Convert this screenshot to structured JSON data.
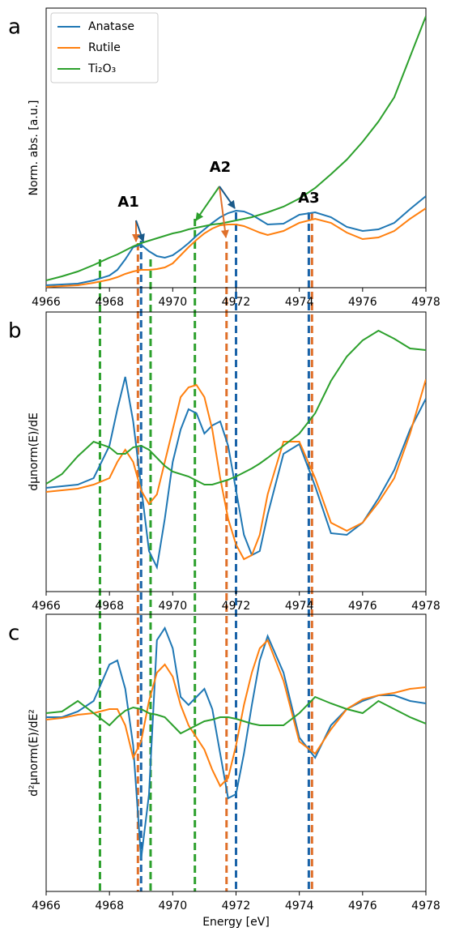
{
  "chart_data": [
    {
      "type": "line",
      "panel_label": "a",
      "ylabel": "Norm. abs. [a.u.]",
      "x": [
        4966,
        4966.5,
        4967,
        4967.5,
        4968,
        4968.25,
        4968.5,
        4968.75,
        4969,
        4969.25,
        4969.5,
        4969.75,
        4970,
        4970.25,
        4970.5,
        4970.75,
        4971,
        4971.25,
        4971.5,
        4971.75,
        4972,
        4972.25,
        4972.5,
        4972.75,
        4973,
        4973.5,
        4974,
        4974.5,
        4975,
        4975.5,
        4976,
        4976.5,
        4977,
        4977.5,
        4978
      ],
      "series": [
        {
          "name": "Anatase",
          "color": "#1f77b4",
          "values": [
            3,
            4,
            5,
            9,
            15,
            22,
            35,
            50,
            53,
            45,
            39,
            37,
            40,
            47,
            55,
            64,
            72,
            80,
            87,
            92,
            95,
            94,
            90,
            84,
            78,
            79,
            90,
            93,
            87,
            75,
            70,
            72,
            80,
            97,
            113
          ]
        },
        {
          "name": "Rutile",
          "color": "#ff7f0e",
          "values": [
            1,
            2,
            3,
            6,
            10,
            13,
            17,
            20,
            22,
            22,
            23,
            25,
            30,
            40,
            50,
            59,
            67,
            73,
            77,
            78,
            78,
            76,
            72,
            68,
            65,
            70,
            80,
            85,
            80,
            68,
            60,
            62,
            70,
            85,
            98
          ]
        },
        {
          "name": "Ti₂O₃",
          "color": "#2ca02c",
          "values": [
            9,
            14,
            20,
            28,
            37,
            41,
            46,
            51,
            55,
            58,
            61,
            64,
            67,
            69,
            72,
            74,
            76,
            78,
            79,
            81,
            83,
            85,
            87,
            90,
            93,
            100,
            110,
            123,
            140,
            158,
            180,
            205,
            235,
            285,
            335
          ]
        }
      ],
      "annotations": [
        {
          "text": "A1",
          "x": 4968.6,
          "y": 105
        },
        {
          "text": "A2",
          "x": 4971.5,
          "y": 148
        },
        {
          "text": "A3",
          "x": 4974.3,
          "y": 110
        }
      ],
      "vlines": [
        {
          "x": 4967.7,
          "y": 35,
          "color": "#2ca02c"
        },
        {
          "x": 4969.3,
          "y": 35,
          "color": "#2ca02c"
        },
        {
          "x": 4970.7,
          "y": 85,
          "color": "#2ca02c"
        },
        {
          "x": 4968.9,
          "y": 55,
          "color": "#e0702a"
        },
        {
          "x": 4971.7,
          "y": 57,
          "color": "#e0702a"
        },
        {
          "x": 4974.4,
          "y": 93,
          "color": "#e0702a"
        },
        {
          "x": 4969.0,
          "y": 58,
          "color": "#1a63a8"
        },
        {
          "x": 4972.0,
          "y": 93,
          "color": "#1a63a8"
        },
        {
          "x": 4974.3,
          "y": 93,
          "color": "#1a63a8"
        }
      ],
      "legend": "upper left",
      "xlim": [
        4966,
        4978
      ],
      "xticks": [
        4966,
        4968,
        4970,
        4972,
        4974,
        4976,
        4978
      ],
      "ylim": [
        0,
        345
      ]
    },
    {
      "type": "line",
      "panel_label": "b",
      "ylabel": "dμnorm(E)/dE",
      "x": [
        4966,
        4966.5,
        4967,
        4967.5,
        4968,
        4968.25,
        4968.5,
        4968.75,
        4969,
        4969.25,
        4969.5,
        4969.75,
        4970,
        4970.25,
        4970.5,
        4970.75,
        4971,
        4971.25,
        4971.5,
        4971.75,
        4972,
        4972.25,
        4972.5,
        4972.75,
        4973,
        4973.5,
        4974,
        4974.5,
        4975,
        4975.5,
        4976,
        4976.5,
        4977,
        4977.5,
        4978
      ],
      "series": [
        {
          "name": "Anatase",
          "color": "#1f77b4",
          "values": [
            128,
            130,
            132,
            140,
            180,
            225,
            265,
            210,
            130,
            50,
            30,
            90,
            160,
            200,
            225,
            220,
            195,
            205,
            210,
            180,
            125,
            70,
            45,
            50,
            95,
            170,
            182,
            130,
            72,
            70,
            85,
            115,
            150,
            200,
            238
          ]
        },
        {
          "name": "Rutile",
          "color": "#ff7f0e",
          "values": [
            123,
            125,
            127,
            132,
            140,
            160,
            175,
            160,
            125,
            108,
            120,
            160,
            200,
            240,
            252,
            255,
            240,
            200,
            140,
            90,
            58,
            40,
            45,
            70,
            120,
            185,
            185,
            140,
            85,
            75,
            85,
            110,
            140,
            195,
            262
          ]
        },
        {
          "name": "Ti₂O₃",
          "color": "#2ca02c",
          "values": [
            133,
            145,
            167,
            185,
            178,
            170,
            170,
            178,
            180,
            175,
            165,
            155,
            148,
            145,
            142,
            137,
            132,
            132,
            135,
            138,
            142,
            147,
            152,
            158,
            165,
            180,
            195,
            220,
            260,
            290,
            310,
            322,
            312,
            300,
            298
          ]
        }
      ],
      "xlim": [
        4966,
        4978
      ],
      "xticks": [
        4966,
        4968,
        4970,
        4972,
        4974,
        4976,
        4978
      ],
      "ylim": [
        0,
        345
      ]
    },
    {
      "type": "line",
      "panel_label": "c",
      "ylabel": "d²μnorm(E)/dE²",
      "xlabel": "Energy [eV]",
      "x": [
        4966,
        4966.5,
        4967,
        4967.5,
        4968,
        4968.25,
        4968.5,
        4968.75,
        4969,
        4969.25,
        4969.5,
        4969.75,
        4970,
        4970.25,
        4970.5,
        4970.75,
        4971,
        4971.25,
        4971.5,
        4971.75,
        4972,
        4972.25,
        4972.5,
        4972.75,
        4973,
        4973.5,
        4974,
        4974.5,
        4975,
        4975.5,
        4976,
        4976.5,
        4977,
        4977.5,
        4978
      ],
      "series": [
        {
          "name": "Anatase",
          "color": "#1f77b4",
          "values": [
            215,
            215,
            222,
            235,
            280,
            285,
            250,
            180,
            40,
            120,
            310,
            325,
            300,
            240,
            230,
            240,
            250,
            225,
            170,
            115,
            120,
            170,
            230,
            285,
            315,
            270,
            190,
            165,
            205,
            225,
            235,
            242,
            242,
            235,
            232
          ]
        },
        {
          "name": "Rutile",
          "color": "#ff7f0e",
          "values": [
            212,
            214,
            218,
            220,
            225,
            225,
            205,
            165,
            185,
            235,
            270,
            280,
            265,
            230,
            205,
            190,
            175,
            150,
            130,
            140,
            180,
            230,
            270,
            300,
            310,
            260,
            185,
            170,
            200,
            225,
            237,
            242,
            245,
            250,
            252
          ]
        },
        {
          "name": "Ti₂O₃",
          "color": "#2ca02c",
          "values": [
            220,
            222,
            235,
            220,
            205,
            215,
            223,
            227,
            225,
            220,
            218,
            215,
            205,
            195,
            200,
            205,
            210,
            212,
            215,
            215,
            213,
            210,
            207,
            205,
            205,
            205,
            220,
            240,
            232,
            225,
            220,
            235,
            225,
            215,
            207
          ]
        }
      ],
      "xlim": [
        4966,
        4978
      ],
      "xticks": [
        4966,
        4968,
        4970,
        4972,
        4974,
        4976,
        4978
      ],
      "ylim": [
        0,
        342
      ]
    }
  ]
}
